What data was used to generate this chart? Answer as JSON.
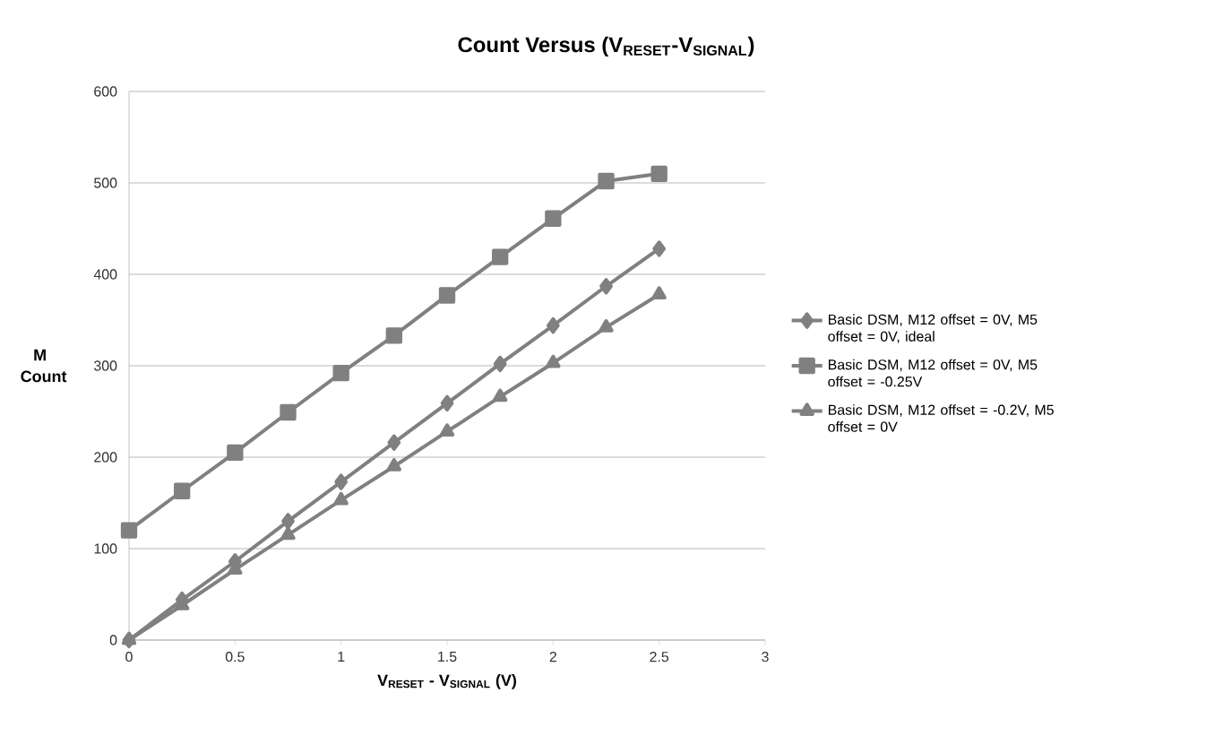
{
  "chart_data": {
    "type": "line",
    "title": "Count Versus (V$_{RESET}$-V$_{SIGNAL}$)",
    "xlabel": "V$_{RESET}$ - V$_{SIGNAL}$ (V)",
    "ylabel": "M Count",
    "x": [
      0,
      0.25,
      0.5,
      0.75,
      1,
      1.25,
      1.5,
      1.75,
      2,
      2.25,
      2.5
    ],
    "series": [
      {
        "name": "Basic DSM, M12 offset = 0V, M5 offset = 0V, ideal",
        "color": "#808080",
        "marker": "diamond",
        "values": [
          0,
          44,
          86,
          130,
          173,
          216,
          259,
          302,
          344,
          387,
          428
        ]
      },
      {
        "name": "Basic DSM, M12 offset = 0V, M5 offset = -0.25V",
        "color": "#808080",
        "marker": "square",
        "values": [
          120,
          163,
          205,
          249,
          292,
          333,
          377,
          419,
          461,
          502,
          510
        ]
      },
      {
        "name": "Basic DSM, M12 offset = -0.2V, M5 offset = 0V",
        "color": "#808080",
        "marker": "triangle",
        "values": [
          0,
          38,
          77,
          115,
          153,
          190,
          228,
          266,
          303,
          342,
          378
        ]
      }
    ],
    "xlim": [
      0,
      3
    ],
    "xticks": [
      0,
      0.5,
      1,
      1.5,
      2,
      2.5,
      3
    ],
    "ylim": [
      0,
      600
    ],
    "yticks": [
      0,
      100,
      200,
      300,
      400,
      500,
      600
    ],
    "grid": "y",
    "legend": "right",
    "line_style": "solid"
  }
}
